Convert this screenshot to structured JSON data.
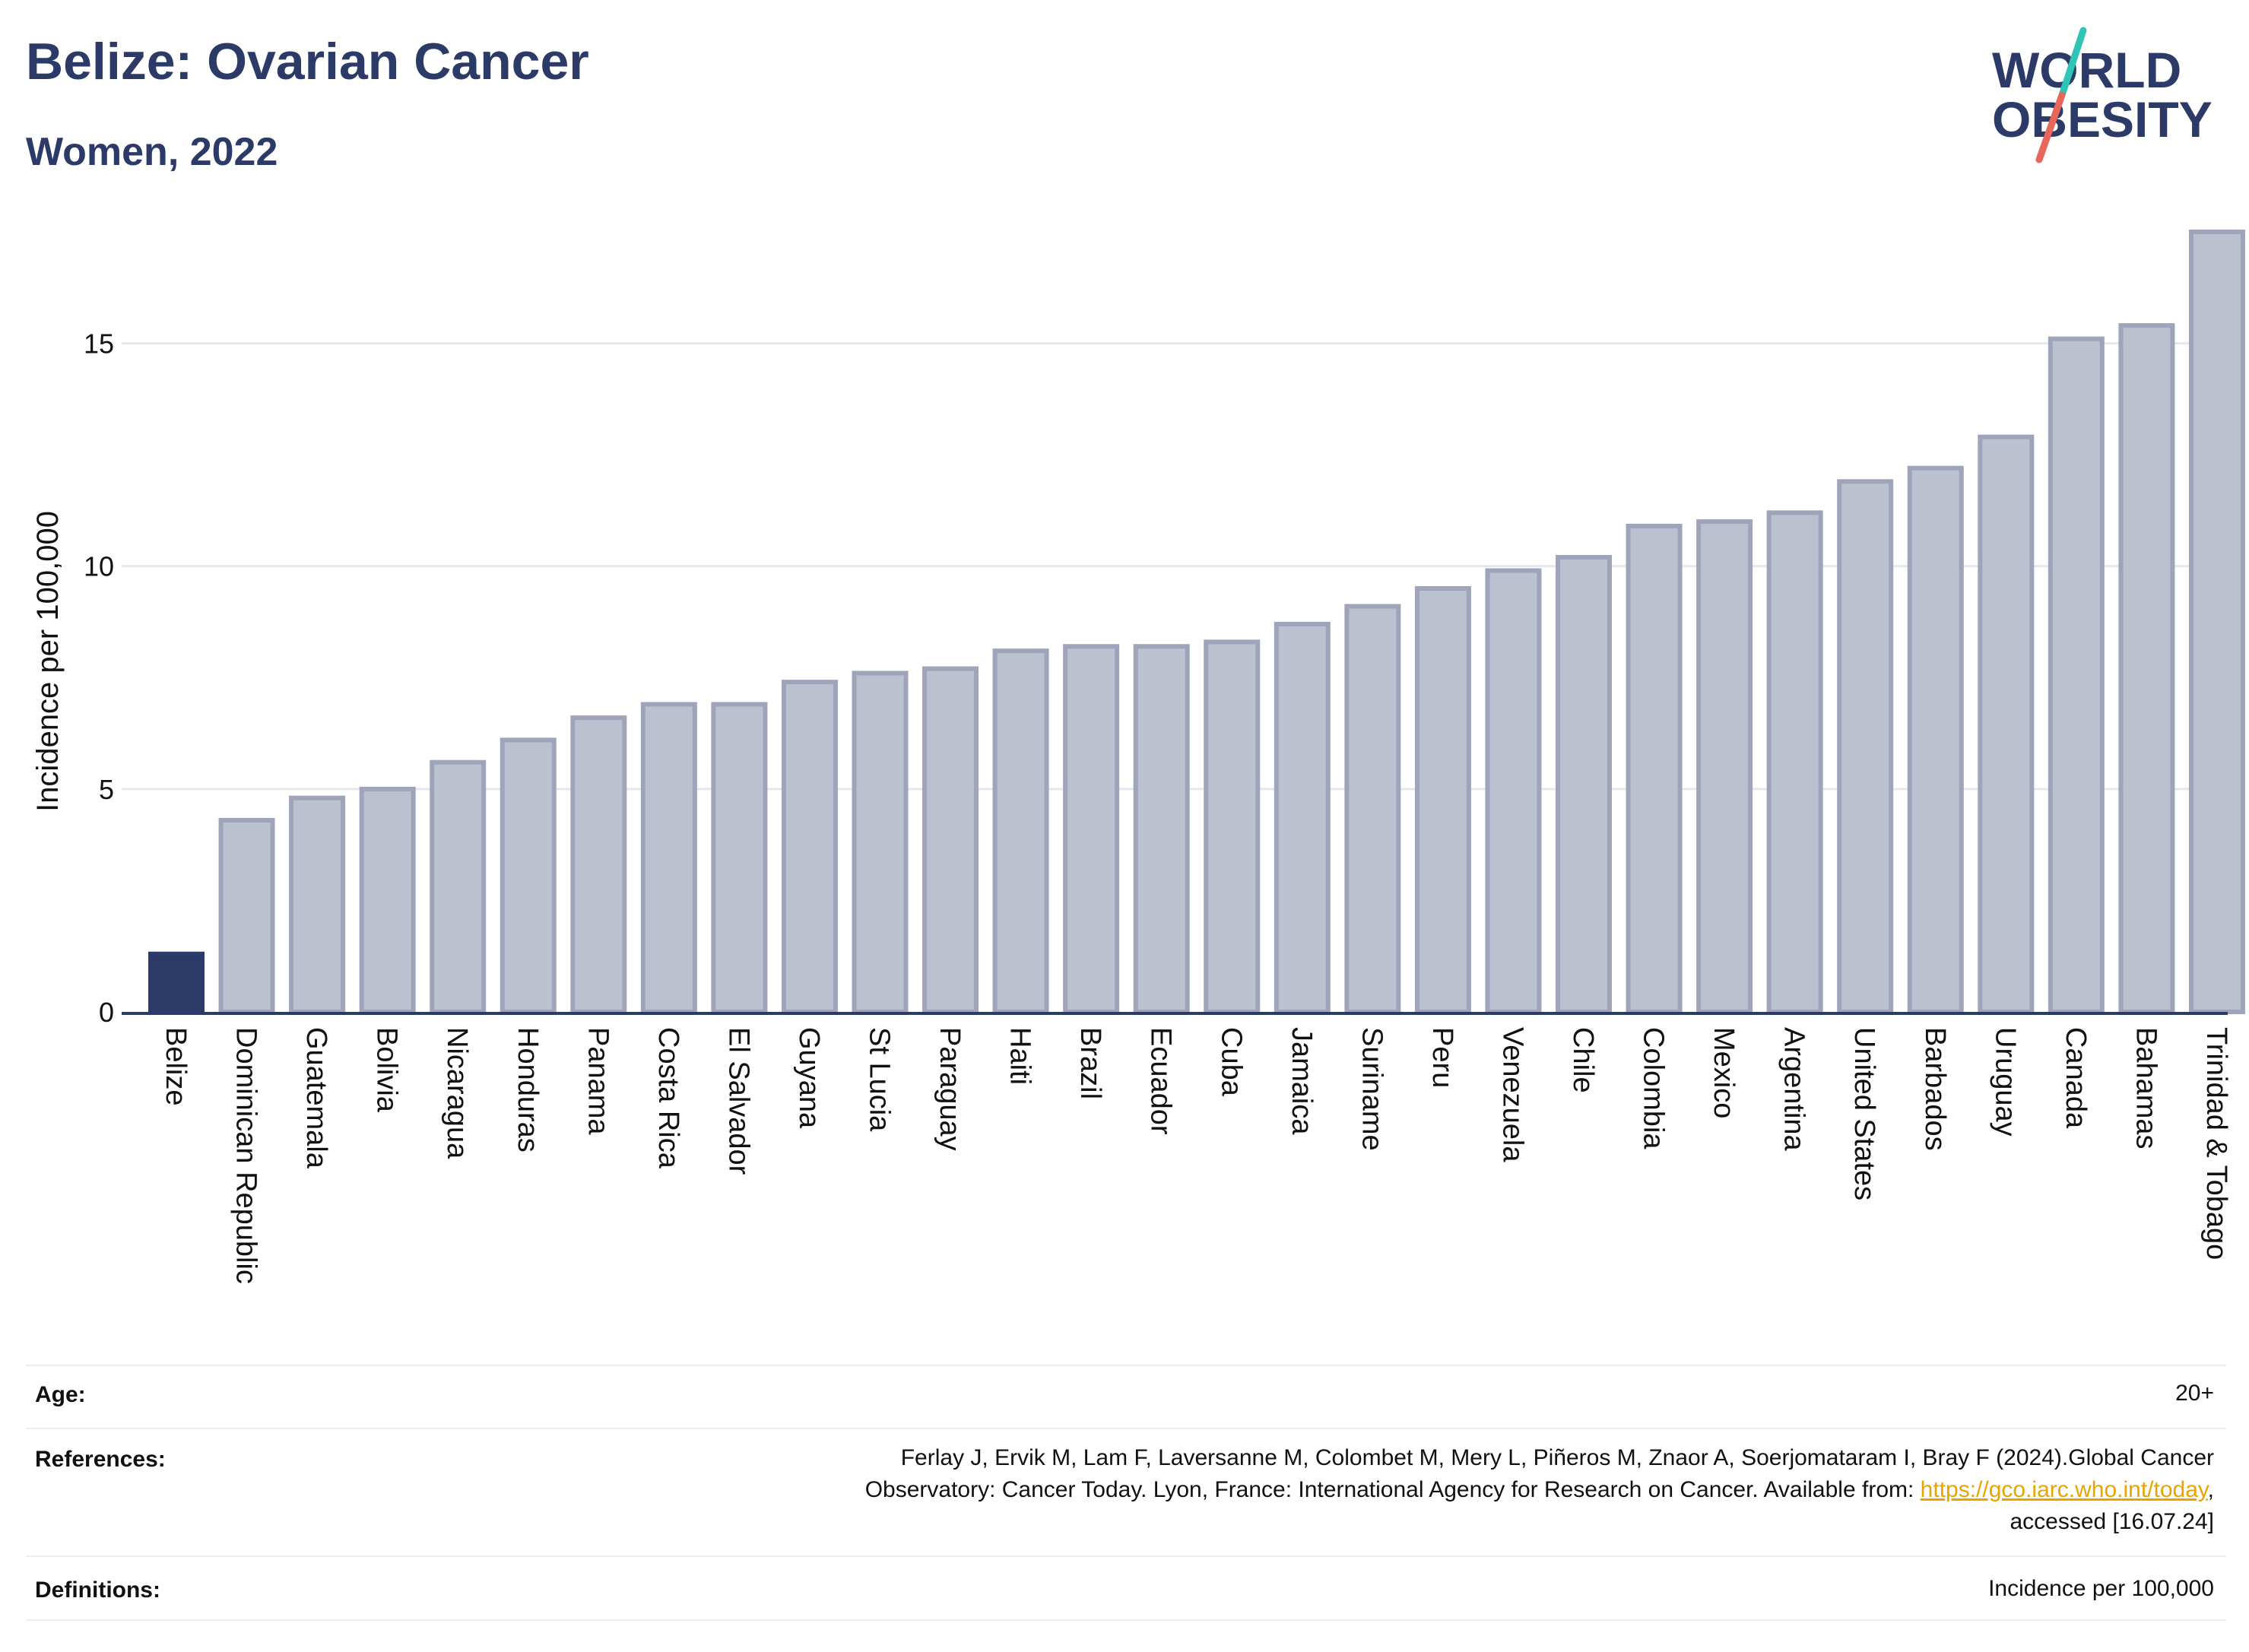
{
  "header": {
    "title": "Belize: Ovarian Cancer",
    "subtitle": "Women, 2022"
  },
  "logo": {
    "line1": "WORLD",
    "line2": "OBESITY",
    "accent_colors": [
      "#2ec4b6",
      "#e8675a"
    ],
    "text_color": "#2b3a67"
  },
  "chart_data": {
    "type": "bar",
    "ylabel": "Incidence per 100,000",
    "xlabel": "",
    "ylim": [
      0,
      18
    ],
    "yticks": [
      0,
      5,
      10,
      15
    ],
    "grid": true,
    "highlight": "Belize",
    "highlight_color": "#2b3a67",
    "bar_color": "#bcc1cf",
    "bar_edge_color": "#9ea4ba",
    "categories": [
      "Belize",
      "Dominican Republic",
      "Guatemala",
      "Bolivia",
      "Nicaragua",
      "Honduras",
      "Panama",
      "Costa Rica",
      "El Salvador",
      "Guyana",
      "St Lucia",
      "Paraguay",
      "Haiti",
      "Brazil",
      "Ecuador",
      "Cuba",
      "Jamaica",
      "Suriname",
      "Peru",
      "Venezuela",
      "Chile",
      "Colombia",
      "Mexico",
      "Argentina",
      "United States",
      "Barbados",
      "Uruguay",
      "Canada",
      "Bahamas",
      "Trinidad & Tobago"
    ],
    "values": [
      1.3,
      4.3,
      4.8,
      5.0,
      5.6,
      6.1,
      6.6,
      6.9,
      6.9,
      7.4,
      7.6,
      7.7,
      8.1,
      8.2,
      8.2,
      8.3,
      8.7,
      9.1,
      9.5,
      9.9,
      10.2,
      10.9,
      11.0,
      11.2,
      11.9,
      12.2,
      12.9,
      15.1,
      15.4,
      17.5
    ]
  },
  "footer": {
    "age_label": "Age:",
    "age_value": "20+",
    "references_label": "References:",
    "references_text_1": "Ferlay J, Ervik M, Lam F, Laversanne M, Colombet M, Mery L, Piñeros M, Znaor A, Soerjomataram I, Bray F (2024).Global Cancer",
    "references_text_2": "Observatory: Cancer Today. Lyon, France: International Agency for Research on Cancer. Available from: ",
    "references_link": "https://gco.iarc.who.int/today",
    "references_text_3": ",",
    "references_text_4": "accessed [16.07.24]",
    "definitions_label": "Definitions:",
    "definitions_value": "Incidence per 100,000"
  }
}
